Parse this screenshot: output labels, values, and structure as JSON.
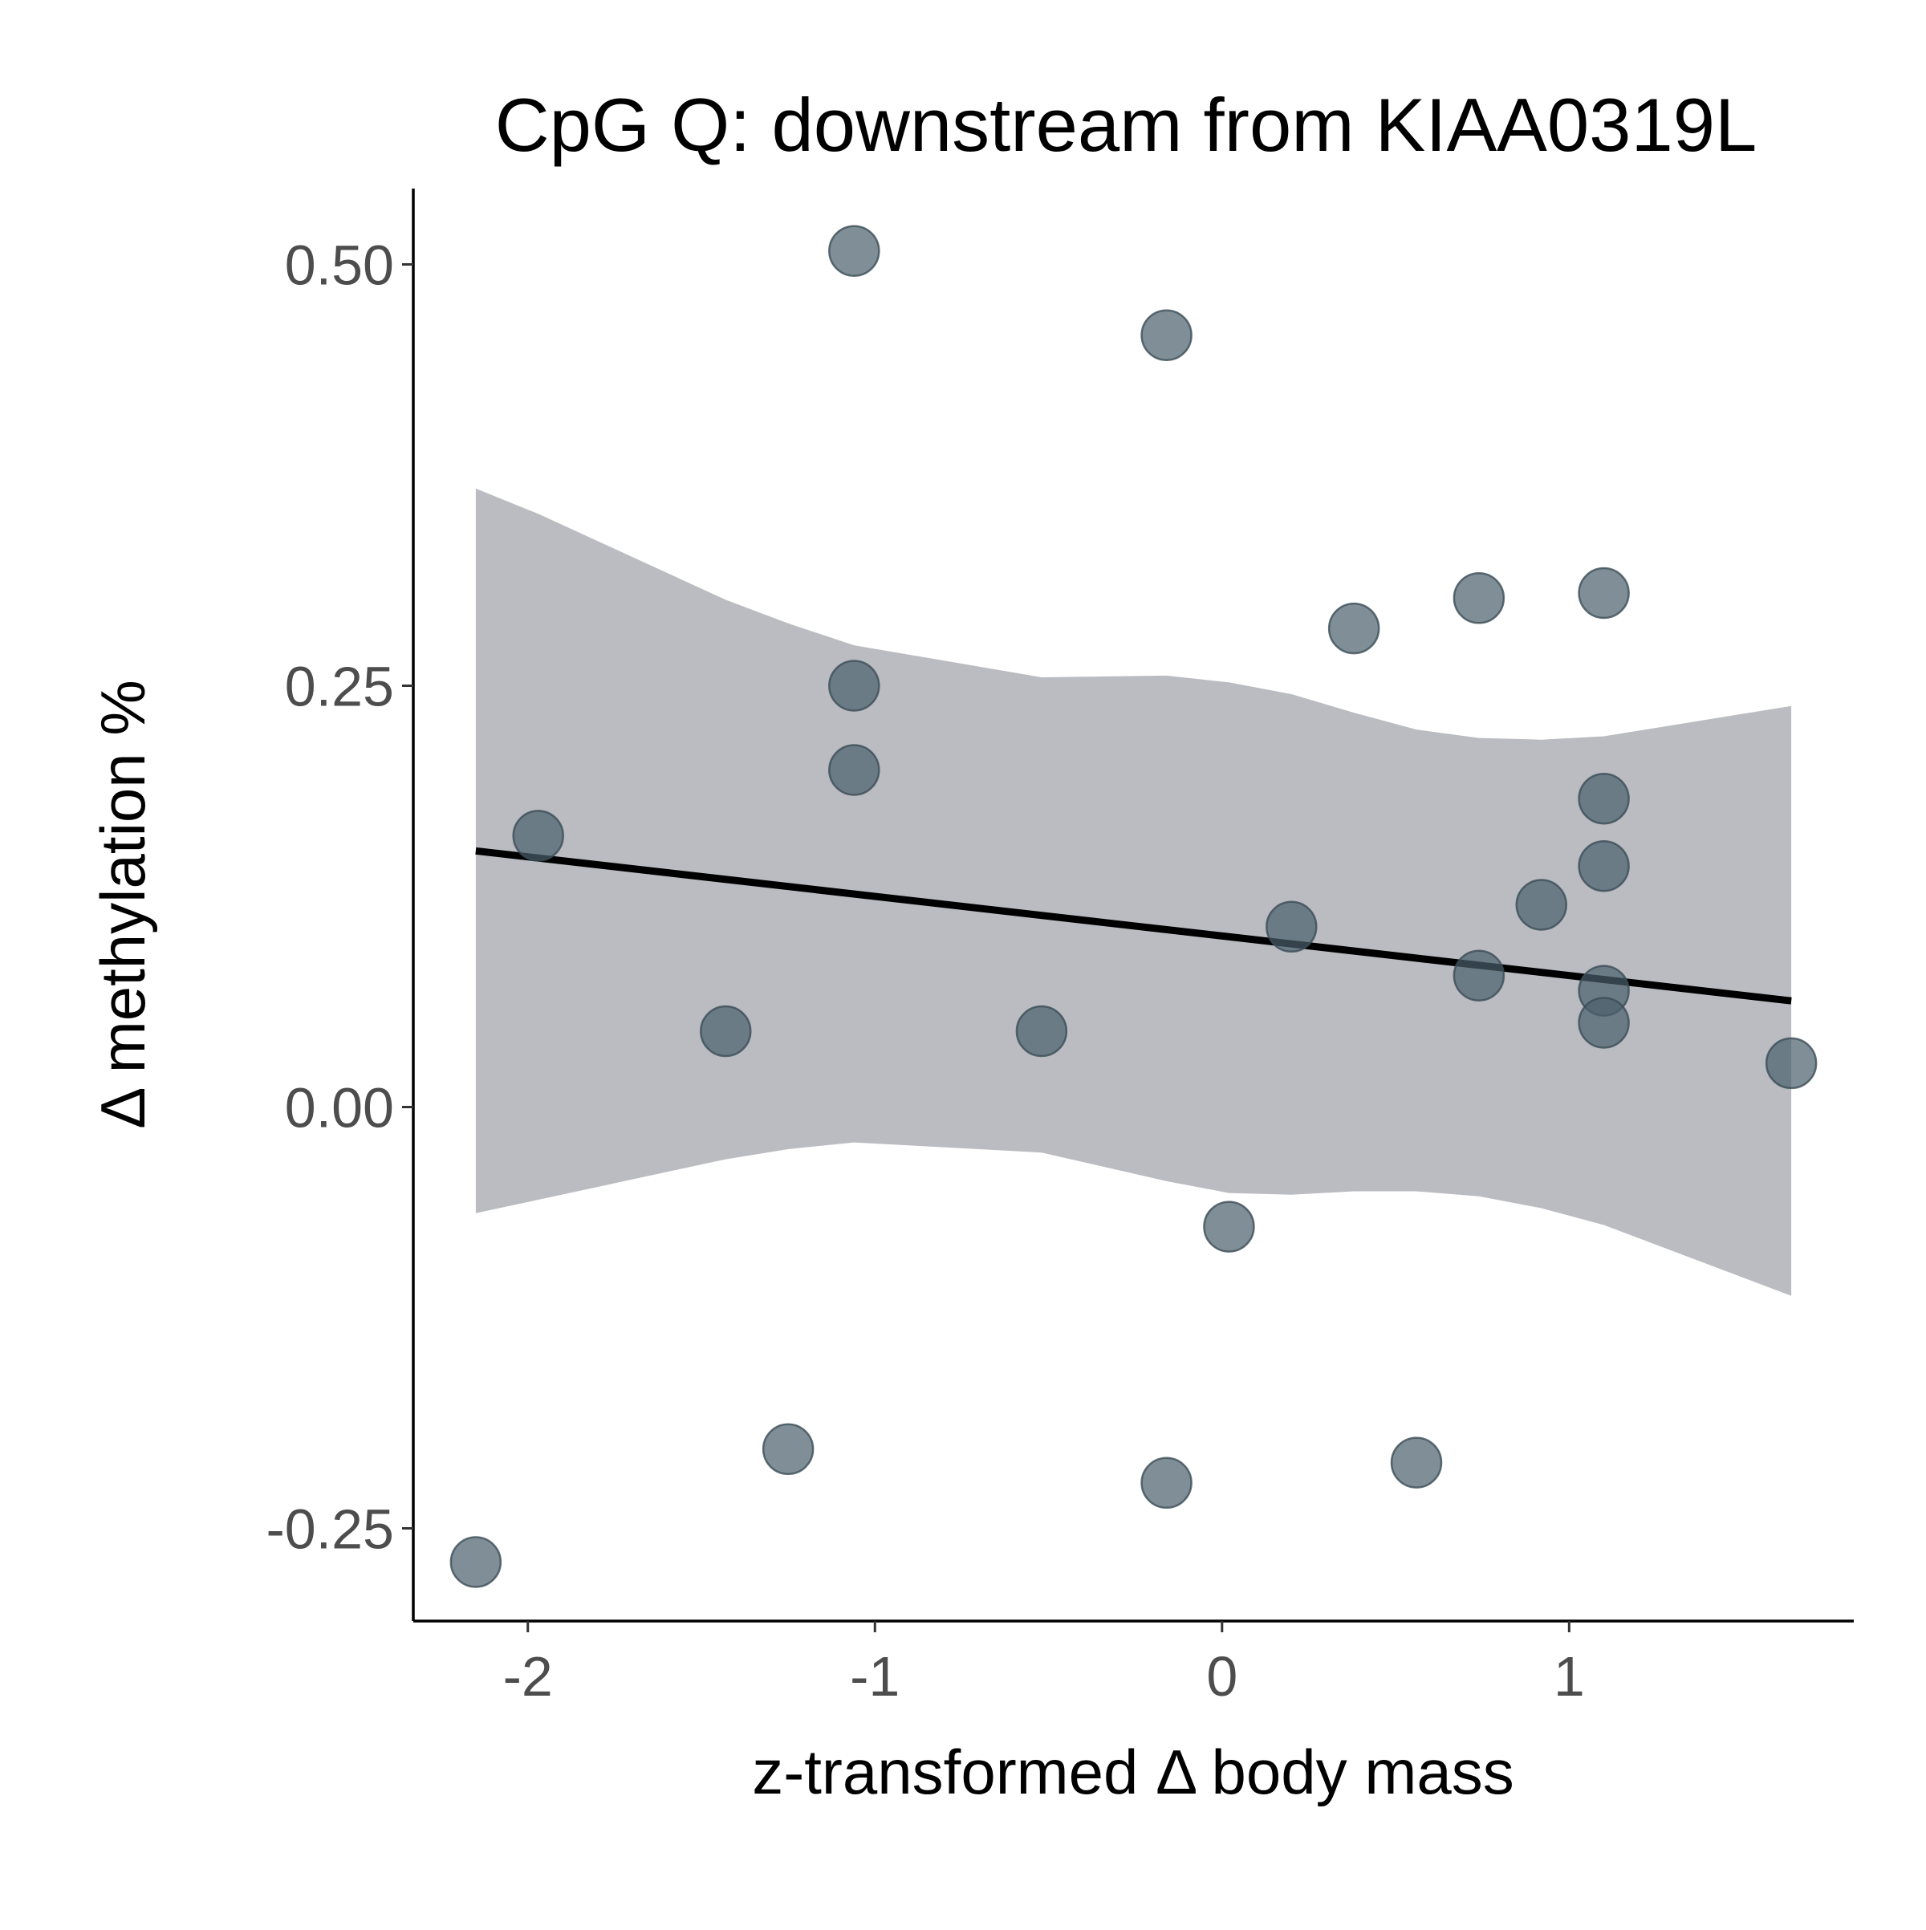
{
  "chart_data": {
    "type": "scatter",
    "title": "CpG Q: downstream from KIAA0319L",
    "xlabel": "z-transformed Δ body mass",
    "ylabel": "Δ methylation %",
    "xlim": [
      -2.33,
      1.82
    ],
    "ylim": [
      -0.305,
      0.545
    ],
    "x_ticks": [
      -2,
      -1,
      0,
      1
    ],
    "x_tick_labels": [
      "-2",
      "-1",
      "0",
      "1"
    ],
    "y_ticks": [
      -0.25,
      0,
      0.25,
      0.5
    ],
    "y_tick_labels": [
      "-0.25",
      "0.00",
      "0.25",
      "0.50"
    ],
    "grid": false,
    "legend": "none",
    "point_color": "#4a5f6b",
    "band_color": "#a9abb2",
    "line_color": "#000000",
    "points": [
      {
        "x": -2.15,
        "y": -0.27
      },
      {
        "x": -1.97,
        "y": 0.161
      },
      {
        "x": -1.43,
        "y": 0.045
      },
      {
        "x": -1.25,
        "y": -0.203
      },
      {
        "x": -1.06,
        "y": 0.508
      },
      {
        "x": -1.06,
        "y": 0.25
      },
      {
        "x": -1.06,
        "y": 0.2
      },
      {
        "x": -0.52,
        "y": 0.045
      },
      {
        "x": -0.16,
        "y": 0.458
      },
      {
        "x": -0.16,
        "y": -0.223
      },
      {
        "x": 0.02,
        "y": -0.071
      },
      {
        "x": 0.2,
        "y": 0.107
      },
      {
        "x": 0.38,
        "y": 0.284
      },
      {
        "x": 0.56,
        "y": -0.211
      },
      {
        "x": 0.74,
        "y": 0.302
      },
      {
        "x": 0.74,
        "y": 0.078
      },
      {
        "x": 0.92,
        "y": 0.12
      },
      {
        "x": 1.1,
        "y": 0.305
      },
      {
        "x": 1.1,
        "y": 0.183
      },
      {
        "x": 1.1,
        "y": 0.143
      },
      {
        "x": 1.1,
        "y": 0.069
      },
      {
        "x": 1.1,
        "y": 0.05
      },
      {
        "x": 1.64,
        "y": 0.026
      }
    ],
    "regression_line": [
      {
        "x": -2.15,
        "y": 0.152
      },
      {
        "x": 1.64,
        "y": 0.063
      }
    ],
    "confidence_band": [
      {
        "x": -2.15,
        "lower": -0.063,
        "upper": 0.367
      },
      {
        "x": -1.97,
        "lower": -0.055,
        "upper": 0.352
      },
      {
        "x": -1.43,
        "lower": -0.031,
        "upper": 0.301
      },
      {
        "x": -1.25,
        "lower": -0.025,
        "upper": 0.287
      },
      {
        "x": -1.06,
        "lower": -0.021,
        "upper": 0.274
      },
      {
        "x": -0.52,
        "lower": -0.027,
        "upper": 0.255
      },
      {
        "x": -0.16,
        "lower": -0.044,
        "upper": 0.256
      },
      {
        "x": 0.02,
        "lower": -0.051,
        "upper": 0.252
      },
      {
        "x": 0.2,
        "lower": -0.052,
        "upper": 0.245
      },
      {
        "x": 0.38,
        "lower": -0.05,
        "upper": 0.234
      },
      {
        "x": 0.56,
        "lower": -0.05,
        "upper": 0.224
      },
      {
        "x": 0.74,
        "lower": -0.053,
        "upper": 0.219
      },
      {
        "x": 0.92,
        "lower": -0.06,
        "upper": 0.218
      },
      {
        "x": 1.1,
        "lower": -0.07,
        "upper": 0.22
      },
      {
        "x": 1.64,
        "lower": -0.112,
        "upper": 0.238
      }
    ]
  }
}
